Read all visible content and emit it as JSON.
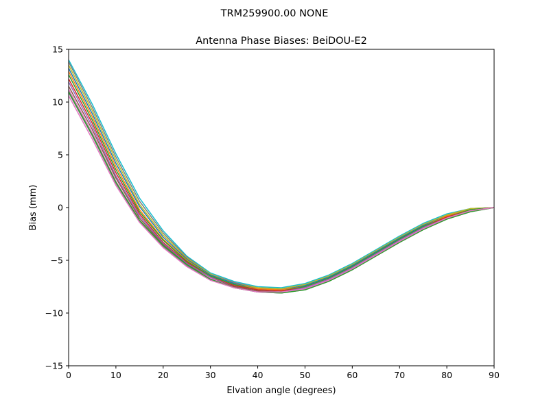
{
  "chart_data": {
    "type": "line",
    "suptitle": "TRM259900.00    NONE",
    "title": "Antenna Phase Biases: BeiDOU-E2",
    "xlabel": "Elvation angle (degrees)",
    "ylabel": "Bias (mm)",
    "xlim": [
      0,
      90
    ],
    "ylim": [
      -15,
      15
    ],
    "xticks": [
      0,
      10,
      20,
      30,
      40,
      50,
      60,
      70,
      80,
      90
    ],
    "yticks": [
      -15,
      -10,
      -5,
      0,
      5,
      10,
      15
    ],
    "grid": false,
    "legend": "none",
    "x": [
      0,
      5,
      10,
      15,
      20,
      25,
      30,
      35,
      40,
      45,
      50,
      55,
      60,
      65,
      70,
      75,
      80,
      85,
      90
    ],
    "series": [
      {
        "color": "#17becf",
        "values": [
          14.0,
          9.8,
          5.1,
          0.9,
          -2.2,
          -4.6,
          -6.2,
          -7.0,
          -7.5,
          -7.6,
          -7.2,
          -6.4,
          -5.3,
          -4.0,
          -2.7,
          -1.5,
          -0.6,
          -0.1,
          0.0
        ]
      },
      {
        "color": "#7f7f7f",
        "values": [
          13.8,
          9.5,
          4.8,
          0.6,
          -2.4,
          -4.7,
          -6.3,
          -7.1,
          -7.6,
          -7.7,
          -7.3,
          -6.5,
          -5.4,
          -4.1,
          -2.8,
          -1.6,
          -0.7,
          -0.1,
          0.0
        ]
      },
      {
        "color": "#bcbd22",
        "values": [
          13.5,
          9.2,
          4.5,
          0.3,
          -2.6,
          -4.8,
          -6.3,
          -7.2,
          -7.6,
          -7.7,
          -7.3,
          -6.5,
          -5.4,
          -4.1,
          -2.8,
          -1.6,
          -0.7,
          -0.1,
          0.0
        ]
      },
      {
        "color": "#1f77b4",
        "values": [
          13.2,
          8.9,
          4.2,
          0.1,
          -2.8,
          -4.9,
          -6.4,
          -7.2,
          -7.7,
          -7.8,
          -7.4,
          -6.6,
          -5.5,
          -4.2,
          -2.9,
          -1.7,
          -0.8,
          -0.2,
          0.0
        ]
      },
      {
        "color": "#ff7f0e",
        "values": [
          12.9,
          8.6,
          3.9,
          -0.2,
          -3.0,
          -5.0,
          -6.5,
          -7.3,
          -7.7,
          -7.8,
          -7.5,
          -6.7,
          -5.6,
          -4.3,
          -3.0,
          -1.8,
          -0.8,
          -0.2,
          0.0
        ]
      },
      {
        "color": "#2ca02c",
        "values": [
          12.6,
          8.3,
          3.6,
          -0.4,
          -3.1,
          -5.1,
          -6.5,
          -7.3,
          -7.8,
          -7.9,
          -7.5,
          -6.7,
          -5.6,
          -4.3,
          -3.0,
          -1.8,
          -0.9,
          -0.2,
          0.0
        ]
      },
      {
        "color": "#d62728",
        "values": [
          12.2,
          8.0,
          3.3,
          -0.6,
          -3.3,
          -5.2,
          -6.6,
          -7.4,
          -7.8,
          -7.9,
          -7.6,
          -6.8,
          -5.7,
          -4.4,
          -3.1,
          -1.9,
          -0.9,
          -0.3,
          0.0
        ]
      },
      {
        "color": "#9467bd",
        "values": [
          11.9,
          7.7,
          3.0,
          -0.8,
          -3.4,
          -5.3,
          -6.6,
          -7.5,
          -7.9,
          -8.0,
          -7.6,
          -6.8,
          -5.7,
          -4.4,
          -3.1,
          -1.9,
          -1.0,
          -0.3,
          0.0
        ]
      },
      {
        "color": "#8c564b",
        "values": [
          11.5,
          7.4,
          2.8,
          -1.0,
          -3.5,
          -5.4,
          -6.7,
          -7.5,
          -7.9,
          -8.0,
          -7.7,
          -6.9,
          -5.8,
          -4.5,
          -3.2,
          -2.0,
          -1.0,
          -0.3,
          0.0
        ]
      },
      {
        "color": "#e377c2",
        "values": [
          11.2,
          7.1,
          2.5,
          -1.2,
          -3.6,
          -5.5,
          -6.7,
          -7.6,
          -8.0,
          -8.1,
          -7.7,
          -6.9,
          -5.8,
          -4.5,
          -3.2,
          -2.0,
          -1.0,
          -0.3,
          0.0
        ]
      },
      {
        "color": "#7f7f7f",
        "values": [
          10.9,
          6.8,
          2.3,
          -1.3,
          -3.7,
          -5.5,
          -6.8,
          -7.6,
          -8.0,
          -8.1,
          -7.8,
          -7.0,
          -5.9,
          -4.6,
          -3.3,
          -2.1,
          -1.1,
          -0.4,
          0.0
        ]
      },
      {
        "color": "#2ca02c",
        "values": [
          11.0,
          6.9,
          2.4,
          -1.2,
          -3.6,
          -5.4,
          -6.8,
          -7.6,
          -8.0,
          -8.1,
          -7.8,
          -7.0,
          -5.9,
          -4.6,
          -3.3,
          -2.1,
          -1.1,
          -0.4,
          0.0
        ]
      },
      {
        "color": "#e377c2",
        "values": [
          10.6,
          6.5,
          2.1,
          -1.4,
          -3.8,
          -5.6,
          -6.9,
          -7.6,
          -8.0,
          -8.0,
          -7.7,
          -6.9,
          -5.8,
          -4.5,
          -3.2,
          -2.0,
          -1.0,
          -0.3,
          0.0
        ]
      }
    ]
  }
}
